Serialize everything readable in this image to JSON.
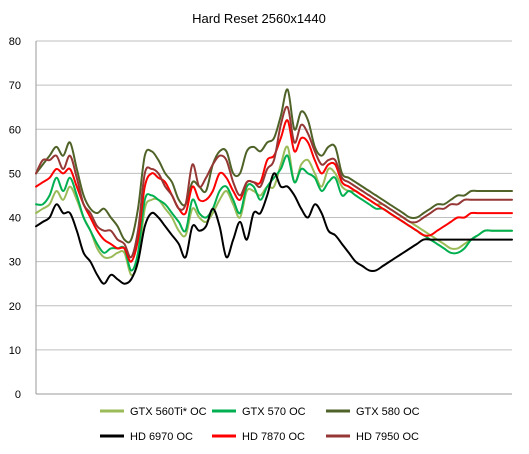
{
  "chart_data": {
    "type": "line",
    "title": "Hard Reset 2560x1440",
    "xlabel": "",
    "ylabel": "",
    "ylim": [
      0,
      80
    ],
    "yticks": [
      0,
      10,
      20,
      30,
      40,
      50,
      60,
      70,
      80
    ],
    "grid": "horizontal",
    "legend_position": "bottom",
    "x": [
      0,
      1,
      2,
      3,
      4,
      5,
      6,
      7,
      8,
      9,
      10,
      11,
      12,
      13,
      14,
      15,
      16,
      17,
      18,
      19,
      20,
      21,
      22,
      23,
      24,
      25,
      26,
      27,
      28,
      29,
      30,
      31,
      32,
      33,
      34,
      35,
      36,
      37,
      38,
      39,
      40,
      41,
      42,
      43,
      44,
      45,
      46,
      47,
      48,
      49,
      50,
      51,
      52,
      53,
      54,
      55,
      56,
      57,
      58,
      59,
      60,
      61,
      62,
      63,
      64,
      65,
      66,
      67,
      68,
      69,
      70
    ],
    "series": [
      {
        "name": "GTX 560Ti* OC",
        "color": "#9bbb59",
        "values": [
          41,
          42,
          43,
          46,
          44,
          47,
          44,
          40,
          37,
          33,
          31,
          31,
          32,
          32,
          27,
          30,
          42,
          44,
          44,
          42,
          40,
          37,
          36,
          42,
          40,
          39,
          41,
          44,
          46,
          43,
          40,
          46,
          46,
          45,
          47,
          47,
          52,
          56,
          48,
          52,
          53,
          50,
          47,
          51,
          50,
          47,
          46,
          46,
          45,
          44,
          43,
          43,
          42,
          41,
          40,
          39,
          38,
          37,
          36,
          35,
          34,
          33,
          33,
          34,
          35,
          36,
          37,
          37,
          37,
          37,
          37
        ]
      },
      {
        "name": "GTX 570 OC",
        "color": "#00b050",
        "values": [
          43,
          43,
          45,
          49,
          46,
          49,
          45,
          40,
          37,
          34,
          32,
          33,
          33,
          33,
          28,
          32,
          44,
          45,
          44,
          43,
          41,
          39,
          37,
          44,
          41,
          40,
          42,
          46,
          47,
          44,
          41,
          47,
          47,
          44,
          47,
          49,
          51,
          54,
          48,
          51,
          50,
          49,
          46,
          48,
          49,
          45,
          46,
          45,
          44,
          43,
          42,
          42,
          41,
          40,
          39,
          38,
          37,
          36,
          35,
          34,
          33,
          32,
          32,
          33,
          35,
          36,
          37,
          37,
          37,
          37,
          37
        ]
      },
      {
        "name": "GTX 580 OC",
        "color": "#4f6228",
        "values": [
          50,
          52,
          54,
          56,
          54,
          57,
          51,
          45,
          42,
          41,
          42,
          40,
          38,
          35,
          35,
          42,
          54,
          55,
          53,
          50,
          48,
          44,
          43,
          48,
          47,
          46,
          52,
          55,
          55,
          50,
          50,
          55,
          56,
          55,
          57,
          58,
          63,
          69,
          60,
          64,
          62,
          56,
          54,
          56,
          56,
          50,
          49,
          48,
          47,
          46,
          45,
          44,
          43,
          42,
          41,
          40,
          40,
          41,
          42,
          43,
          43,
          44,
          45,
          45,
          46,
          46,
          46,
          46,
          46,
          46,
          46
        ]
      },
      {
        "name": "HD 6970 OC",
        "color": "#000000",
        "values": [
          38,
          39,
          40,
          43,
          41,
          41,
          37,
          32,
          30,
          27,
          25,
          27,
          26,
          25,
          26,
          30,
          38,
          41,
          40,
          38,
          36,
          34,
          31,
          38,
          37,
          38,
          42,
          38,
          31,
          35,
          39,
          35,
          41,
          41,
          45,
          50,
          47,
          47,
          45,
          42,
          40,
          43,
          41,
          37,
          36,
          34,
          32,
          30,
          29,
          28,
          28,
          29,
          30,
          31,
          32,
          33,
          34,
          35,
          35,
          35,
          35,
          35,
          35,
          35,
          35,
          35,
          35,
          35,
          35,
          35,
          35
        ]
      },
      {
        "name": "HD 7870 OC",
        "color": "#ff0000",
        "values": [
          47,
          48,
          49,
          51,
          50,
          51,
          47,
          43,
          40,
          37,
          35,
          34,
          33,
          33,
          30,
          35,
          47,
          50,
          49,
          48,
          45,
          42,
          41,
          47,
          44,
          44,
          46,
          50,
          49,
          46,
          44,
          48,
          48,
          48,
          53,
          54,
          58,
          62,
          55,
          58,
          57,
          53,
          50,
          52,
          52,
          48,
          47,
          46,
          45,
          44,
          43,
          42,
          41,
          40,
          39,
          38,
          37,
          36,
          36,
          37,
          38,
          39,
          40,
          40,
          41,
          41,
          41,
          41,
          41,
          41,
          41
        ]
      },
      {
        "name": "HD 7950 OC",
        "color": "#953735",
        "values": [
          50,
          53,
          53,
          54,
          51,
          54,
          49,
          43,
          41,
          38,
          37,
          37,
          35,
          34,
          31,
          37,
          50,
          51,
          50,
          47,
          45,
          42,
          43,
          52,
          47,
          49,
          52,
          54,
          53,
          48,
          45,
          48,
          48,
          47,
          51,
          53,
          61,
          65,
          57,
          61,
          59,
          55,
          52,
          53,
          53,
          49,
          48,
          47,
          46,
          45,
          44,
          43,
          42,
          41,
          40,
          39,
          39,
          40,
          41,
          42,
          42,
          43,
          43,
          44,
          44,
          44,
          44,
          44,
          44,
          44,
          44
        ]
      }
    ]
  }
}
